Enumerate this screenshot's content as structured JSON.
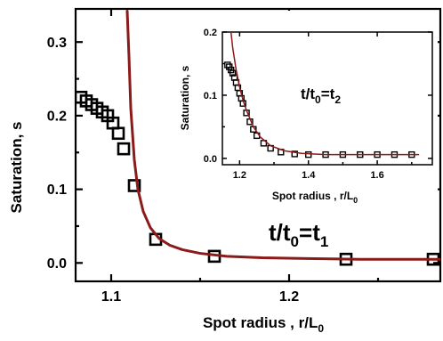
{
  "chart_data": [
    {
      "type": "scatter",
      "panel": "main",
      "title": "",
      "annotation": {
        "base": "t/t",
        "sub1": "0",
        "mid": "=t",
        "sub2": "1"
      },
      "xlabel": {
        "base": "Spot radius , r/L",
        "sub": "0"
      },
      "ylabel": "Saturation, s",
      "xlim": [
        1.08,
        1.285
      ],
      "ylim": [
        -0.025,
        0.345
      ],
      "xticks": [
        1.1,
        1.2
      ],
      "xtick_labels": [
        "1.1",
        "1.2"
      ],
      "yticks": [
        0.0,
        0.1,
        0.2,
        0.3
      ],
      "ytick_labels": [
        "0.0",
        "0.1",
        "0.2",
        "0.3"
      ],
      "grid": false,
      "legend": "none",
      "series": [
        {
          "kind": "markers",
          "marker": "open-square",
          "color": "#000000",
          "x": [
            1.083,
            1.086,
            1.089,
            1.092,
            1.095,
            1.098,
            1.101,
            1.104,
            1.107,
            1.113,
            1.125,
            1.158,
            1.232,
            1.281
          ],
          "y": [
            0.225,
            0.22,
            0.215,
            0.21,
            0.205,
            0.2,
            0.19,
            0.176,
            0.155,
            0.105,
            0.032,
            0.009,
            0.005,
            0.005
          ]
        },
        {
          "kind": "fit-line",
          "color": "#8b1a1a",
          "x": [
            1.109,
            1.11,
            1.111,
            1.113,
            1.115,
            1.118,
            1.122,
            1.127,
            1.133,
            1.14,
            1.15,
            1.165,
            1.185,
            1.21,
            1.24,
            1.285
          ],
          "y": [
            0.342,
            0.28,
            0.21,
            0.14,
            0.1,
            0.07,
            0.048,
            0.033,
            0.024,
            0.018,
            0.013,
            0.009,
            0.007,
            0.006,
            0.005,
            0.005
          ]
        }
      ]
    },
    {
      "type": "scatter",
      "panel": "inset",
      "title": "",
      "annotation": {
        "base": "t/t",
        "sub1": "0",
        "mid": "=t",
        "sub2": "2"
      },
      "xlabel": {
        "base": "Spot radius , r/L",
        "sub": "0"
      },
      "ylabel": "Saturation, s",
      "xlim": [
        1.15,
        1.76
      ],
      "ylim": [
        -0.01,
        0.2
      ],
      "xticks": [
        1.2,
        1.4,
        1.6
      ],
      "xtick_labels": [
        "1.2",
        "1.4",
        "1.6"
      ],
      "yticks": [
        0.0,
        0.1,
        0.2
      ],
      "ytick_labels": [
        "0.0",
        "0.1",
        "0.2"
      ],
      "grid": false,
      "legend": "none",
      "series": [
        {
          "kind": "markers",
          "marker": "open-square",
          "color": "#000000",
          "x": [
            1.165,
            1.17,
            1.175,
            1.18,
            1.185,
            1.19,
            1.195,
            1.2,
            1.205,
            1.21,
            1.22,
            1.23,
            1.24,
            1.25,
            1.27,
            1.29,
            1.32,
            1.36,
            1.4,
            1.45,
            1.5,
            1.55,
            1.6,
            1.65,
            1.7
          ],
          "y": [
            0.148,
            0.145,
            0.14,
            0.135,
            0.128,
            0.12,
            0.112,
            0.103,
            0.095,
            0.087,
            0.072,
            0.058,
            0.046,
            0.036,
            0.024,
            0.016,
            0.01,
            0.007,
            0.006,
            0.006,
            0.006,
            0.006,
            0.006,
            0.006,
            0.006
          ]
        },
        {
          "kind": "fit-line",
          "color": "#8b1a1a",
          "x": [
            1.175,
            1.18,
            1.19,
            1.2,
            1.21,
            1.22,
            1.24,
            1.26,
            1.29,
            1.33,
            1.38,
            1.45,
            1.55,
            1.65,
            1.72
          ],
          "y": [
            0.2,
            0.175,
            0.14,
            0.113,
            0.092,
            0.076,
            0.05,
            0.034,
            0.02,
            0.012,
            0.008,
            0.006,
            0.006,
            0.006,
            0.006
          ]
        }
      ]
    }
  ]
}
